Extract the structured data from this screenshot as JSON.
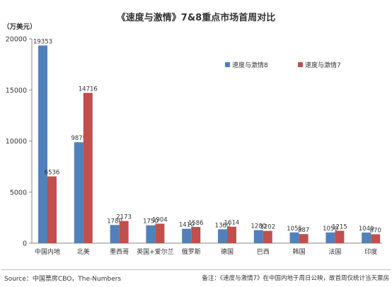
{
  "chart_data": {
    "type": "bar",
    "title": "《速度与激情》7&8重点市场首周对比",
    "ylabel": "（万美元）",
    "xlabel": "",
    "ylim": [
      0,
      20000
    ],
    "yticks": [
      "0",
      "5000",
      "10000",
      "15000",
      "20000"
    ],
    "grid": false,
    "legend_position": "right",
    "categories": [
      "中国内地",
      "北美",
      "墨西哥",
      "英国+爱尔兰",
      "俄罗斯",
      "德国",
      "巴西",
      "韩国",
      "法国",
      "印度"
    ],
    "series": [
      {
        "name": "速度与激情8",
        "color": "#4f81bd",
        "values": [
          19353,
          9879,
          1780,
          1750,
          1410,
          1360,
          1280,
          1055,
          1050,
          1040
        ]
      },
      {
        "name": "速度与激情7",
        "color": "#c0504d",
        "values": [
          6536,
          14716,
          2173,
          1904,
          1586,
          1614,
          1202,
          887,
          1215,
          870
        ]
      }
    ]
  },
  "footer": {
    "source": "Source：中国票房CBO，The-Numbers",
    "remark": "备注：《速度与激情7》在中国内地于周日公映，故首周仅统计当天票房"
  }
}
